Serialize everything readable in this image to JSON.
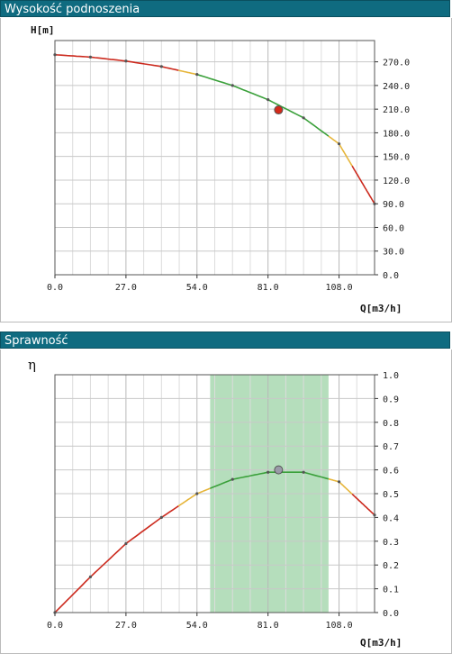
{
  "chart_data": [
    {
      "type": "line",
      "title": "Wysokość podnoszenia",
      "ylabel": "H[m]",
      "xlabel": "Q[m3/h]",
      "xlim": [
        0,
        121.5
      ],
      "ylim": [
        0,
        297
      ],
      "x_ticks": [
        "0.0",
        "27.0",
        "54.0",
        "81.0",
        "108.0"
      ],
      "y_ticks": [
        "0.0",
        "30.0",
        "60.0",
        "90.0",
        "120.0",
        "150.0",
        "180.0",
        "210.0",
        "240.0",
        "270.0"
      ],
      "series": [
        {
          "x": [
            0,
            13.5,
            27,
            40.5,
            54,
            67.5,
            81,
            94.5,
            108,
            121.5
          ],
          "y": [
            279,
            276,
            271,
            264,
            254,
            240,
            222,
            199,
            166,
            90
          ]
        }
      ],
      "segments": [
        {
          "from": 0,
          "to": 47,
          "color": "#cc2a1e"
        },
        {
          "from": 47,
          "to": 54,
          "color": "#e6b53a"
        },
        {
          "from": 54,
          "to": 104,
          "color": "#3aa03a"
        },
        {
          "from": 104,
          "to": 113,
          "color": "#e6b53a"
        },
        {
          "from": 113,
          "to": 121.5,
          "color": "#cc2a1e"
        }
      ],
      "operating_point": {
        "x": 85,
        "y": 209,
        "color": "#d42a1a"
      }
    },
    {
      "type": "line",
      "title": "Sprawność",
      "ylabel": "η",
      "xlabel": "Q[m3/h]",
      "xlim": [
        0,
        121.5
      ],
      "ylim": [
        0,
        1.0
      ],
      "x_ticks": [
        "0.0",
        "27.0",
        "54.0",
        "81.0",
        "108.0"
      ],
      "y_ticks": [
        "0.0",
        "0.1",
        "0.2",
        "0.3",
        "0.4",
        "0.5",
        "0.6",
        "0.7",
        "0.8",
        "0.9",
        "1.0"
      ],
      "series": [
        {
          "x": [
            0,
            13.5,
            27,
            40.5,
            54,
            67.5,
            81,
            94.5,
            108,
            121.5
          ],
          "y": [
            0.0,
            0.15,
            0.29,
            0.4,
            0.5,
            0.56,
            0.59,
            0.59,
            0.55,
            0.41
          ]
        }
      ],
      "segments": [
        {
          "from": 0,
          "to": 47,
          "color": "#cc2a1e"
        },
        {
          "from": 47,
          "to": 59,
          "color": "#e6b53a"
        },
        {
          "from": 59,
          "to": 104,
          "color": "#3aa03a"
        },
        {
          "from": 104,
          "to": 113,
          "color": "#e6b53a"
        },
        {
          "from": 113,
          "to": 121.5,
          "color": "#cc2a1e"
        }
      ],
      "band": {
        "from": 59,
        "to": 104,
        "color": "#a8d8b0"
      },
      "operating_point": {
        "x": 85,
        "y": 0.6,
        "color": "#9a9aa8"
      }
    }
  ]
}
